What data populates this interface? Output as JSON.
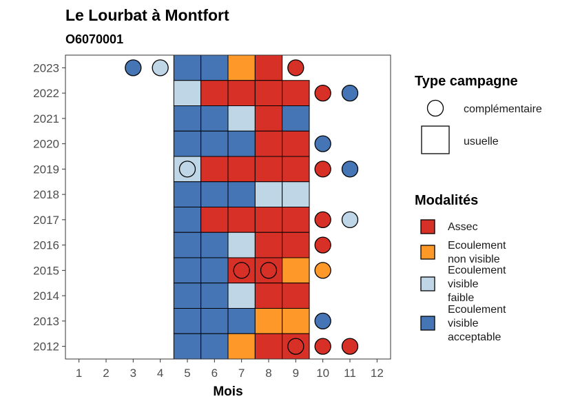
{
  "chart_data": {
    "type": "heatmap",
    "title": "Le Lourbat à Montfort",
    "subtitle": "O6070001",
    "xlabel": "Mois",
    "ylabel": "",
    "x_ticks": [
      "1",
      "2",
      "3",
      "4",
      "5",
      "6",
      "7",
      "8",
      "9",
      "10",
      "11",
      "12"
    ],
    "y_ticks": [
      "2012",
      "2013",
      "2014",
      "2015",
      "2016",
      "2017",
      "2018",
      "2019",
      "2020",
      "2021",
      "2022",
      "2023"
    ],
    "xlim": [
      0.5,
      12.5
    ],
    "ylim": [
      2011.5,
      2023.5
    ],
    "grid": false,
    "legend_position": "right",
    "legend_shape_title": "Type campagne",
    "legend_shapes": [
      {
        "key": "complementaire",
        "label": "complémentaire",
        "shape": "circle"
      },
      {
        "key": "usuelle",
        "label": "usuelle",
        "shape": "square"
      }
    ],
    "legend_color_title": "Modalités",
    "categories": [
      {
        "key": "assec",
        "lines": [
          "Assec"
        ],
        "color": "#D73027"
      },
      {
        "key": "nonvis",
        "lines": [
          "Ecoulement",
          "non visible"
        ],
        "color": "#FE9929"
      },
      {
        "key": "faible",
        "lines": [
          "Ecoulement",
          "visible",
          "faible"
        ],
        "color": "#BFD6E6"
      },
      {
        "key": "accept",
        "lines": [
          "Ecoulement",
          "visible",
          "acceptable"
        ],
        "color": "#4575B4"
      }
    ],
    "usuelle": [
      {
        "year": 2023,
        "month": 5,
        "state": "accept"
      },
      {
        "year": 2023,
        "month": 6,
        "state": "accept"
      },
      {
        "year": 2023,
        "month": 7,
        "state": "nonvis"
      },
      {
        "year": 2023,
        "month": 8,
        "state": "assec"
      },
      {
        "year": 2022,
        "month": 5,
        "state": "faible"
      },
      {
        "year": 2022,
        "month": 6,
        "state": "assec"
      },
      {
        "year": 2022,
        "month": 7,
        "state": "assec"
      },
      {
        "year": 2022,
        "month": 8,
        "state": "assec"
      },
      {
        "year": 2022,
        "month": 9,
        "state": "assec"
      },
      {
        "year": 2021,
        "month": 5,
        "state": "accept"
      },
      {
        "year": 2021,
        "month": 6,
        "state": "accept"
      },
      {
        "year": 2021,
        "month": 7,
        "state": "faible"
      },
      {
        "year": 2021,
        "month": 8,
        "state": "assec"
      },
      {
        "year": 2021,
        "month": 9,
        "state": "accept"
      },
      {
        "year": 2020,
        "month": 5,
        "state": "accept"
      },
      {
        "year": 2020,
        "month": 6,
        "state": "accept"
      },
      {
        "year": 2020,
        "month": 7,
        "state": "accept"
      },
      {
        "year": 2020,
        "month": 8,
        "state": "assec"
      },
      {
        "year": 2020,
        "month": 9,
        "state": "assec"
      },
      {
        "year": 2019,
        "month": 5,
        "state": "faible"
      },
      {
        "year": 2019,
        "month": 6,
        "state": "assec"
      },
      {
        "year": 2019,
        "month": 7,
        "state": "assec"
      },
      {
        "year": 2019,
        "month": 8,
        "state": "assec"
      },
      {
        "year": 2019,
        "month": 9,
        "state": "assec"
      },
      {
        "year": 2018,
        "month": 5,
        "state": "accept"
      },
      {
        "year": 2018,
        "month": 6,
        "state": "accept"
      },
      {
        "year": 2018,
        "month": 7,
        "state": "accept"
      },
      {
        "year": 2018,
        "month": 8,
        "state": "faible"
      },
      {
        "year": 2018,
        "month": 9,
        "state": "faible"
      },
      {
        "year": 2017,
        "month": 5,
        "state": "accept"
      },
      {
        "year": 2017,
        "month": 6,
        "state": "assec"
      },
      {
        "year": 2017,
        "month": 7,
        "state": "assec"
      },
      {
        "year": 2017,
        "month": 8,
        "state": "assec"
      },
      {
        "year": 2017,
        "month": 9,
        "state": "assec"
      },
      {
        "year": 2016,
        "month": 5,
        "state": "accept"
      },
      {
        "year": 2016,
        "month": 6,
        "state": "accept"
      },
      {
        "year": 2016,
        "month": 7,
        "state": "faible"
      },
      {
        "year": 2016,
        "month": 8,
        "state": "assec"
      },
      {
        "year": 2016,
        "month": 9,
        "state": "assec"
      },
      {
        "year": 2015,
        "month": 5,
        "state": "accept"
      },
      {
        "year": 2015,
        "month": 6,
        "state": "accept"
      },
      {
        "year": 2015,
        "month": 7,
        "state": "assec"
      },
      {
        "year": 2015,
        "month": 8,
        "state": "assec"
      },
      {
        "year": 2015,
        "month": 9,
        "state": "nonvis"
      },
      {
        "year": 2014,
        "month": 5,
        "state": "accept"
      },
      {
        "year": 2014,
        "month": 6,
        "state": "accept"
      },
      {
        "year": 2014,
        "month": 7,
        "state": "faible"
      },
      {
        "year": 2014,
        "month": 8,
        "state": "assec"
      },
      {
        "year": 2014,
        "month": 9,
        "state": "assec"
      },
      {
        "year": 2013,
        "month": 5,
        "state": "accept"
      },
      {
        "year": 2013,
        "month": 6,
        "state": "accept"
      },
      {
        "year": 2013,
        "month": 7,
        "state": "accept"
      },
      {
        "year": 2013,
        "month": 8,
        "state": "nonvis"
      },
      {
        "year": 2013,
        "month": 9,
        "state": "nonvis"
      },
      {
        "year": 2012,
        "month": 5,
        "state": "accept"
      },
      {
        "year": 2012,
        "month": 6,
        "state": "accept"
      },
      {
        "year": 2012,
        "month": 7,
        "state": "nonvis"
      },
      {
        "year": 2012,
        "month": 8,
        "state": "assec"
      },
      {
        "year": 2012,
        "month": 9,
        "state": "assec"
      }
    ],
    "complementaire": [
      {
        "year": 2023,
        "month": 3,
        "state": "accept"
      },
      {
        "year": 2023,
        "month": 4,
        "state": "faible"
      },
      {
        "year": 2023,
        "month": 9,
        "state": "assec"
      },
      {
        "year": 2022,
        "month": 10,
        "state": "assec"
      },
      {
        "year": 2022,
        "month": 11,
        "state": "accept"
      },
      {
        "year": 2020,
        "month": 10,
        "state": "accept"
      },
      {
        "year": 2019,
        "month": 5,
        "state": "faible"
      },
      {
        "year": 2019,
        "month": 10,
        "state": "assec"
      },
      {
        "year": 2019,
        "month": 11,
        "state": "accept"
      },
      {
        "year": 2017,
        "month": 10,
        "state": "assec"
      },
      {
        "year": 2017,
        "month": 11,
        "state": "faible"
      },
      {
        "year": 2016,
        "month": 10,
        "state": "assec"
      },
      {
        "year": 2015,
        "month": 7,
        "state": "assec"
      },
      {
        "year": 2015,
        "month": 8,
        "state": "assec"
      },
      {
        "year": 2015,
        "month": 10,
        "state": "nonvis"
      },
      {
        "year": 2013,
        "month": 10,
        "state": "accept"
      },
      {
        "year": 2012,
        "month": 9,
        "state": "assec"
      },
      {
        "year": 2012,
        "month": 10,
        "state": "assec"
      },
      {
        "year": 2012,
        "month": 11,
        "state": "assec"
      }
    ]
  }
}
